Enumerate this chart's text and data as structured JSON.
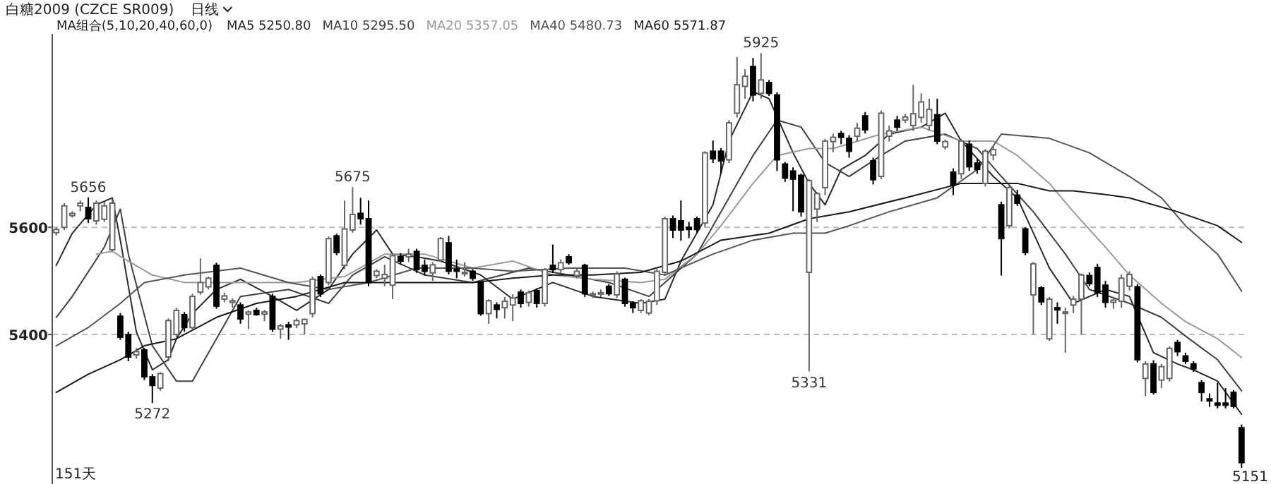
{
  "chart_data": {
    "type": "candlestick",
    "title": "白糖2009 (CZCE SR009)",
    "subtitle": "日线",
    "legend_title": "MA组合(5,10,20,40,60,0)",
    "legend": "top left",
    "grid": "y",
    "tick_labels": "y",
    "ylim": [
      5121,
      5961
    ],
    "yticks": [
      5400,
      5600
    ],
    "categories": [
      null,
      null,
      null,
      null,
      null,
      null,
      null,
      null,
      null,
      null,
      null,
      null,
      null,
      null,
      null,
      null,
      null,
      null,
      null,
      null,
      null,
      null,
      null,
      null,
      null,
      null,
      null,
      null,
      null,
      null,
      null,
      null,
      null,
      null,
      null,
      null,
      null,
      null,
      null,
      null,
      null,
      null,
      null,
      null,
      null,
      null,
      null,
      null,
      null,
      null,
      null,
      null,
      null,
      null,
      null,
      null,
      null,
      null,
      null,
      null,
      null,
      null,
      null,
      null,
      null,
      null,
      null,
      null,
      null,
      null,
      null,
      null,
      null,
      null,
      null,
      null,
      null,
      null,
      null,
      null,
      null,
      null,
      null,
      null,
      null,
      null,
      null,
      null,
      null,
      null,
      null,
      null,
      null,
      null,
      null,
      null,
      null,
      null,
      null,
      null,
      null,
      null,
      null,
      null,
      null,
      null,
      null,
      null,
      null,
      null,
      null,
      null,
      null,
      null,
      null,
      null,
      null,
      null,
      null,
      null,
      null,
      null,
      null,
      null,
      null,
      null,
      null,
      null,
      null,
      null,
      null,
      null,
      null,
      null,
      null,
      null,
      null,
      null,
      null,
      null,
      null,
      null,
      null,
      null,
      null,
      null,
      null,
      null,
      null
    ],
    "ohlc": [
      [
        5590,
        5600,
        5585,
        5596
      ],
      [
        5600,
        5645,
        5595,
        5640
      ],
      [
        5622,
        5630,
        5618,
        5626
      ],
      [
        5640,
        5650,
        5630,
        5645
      ],
      [
        5637,
        5656,
        5608,
        5616
      ],
      [
        5612,
        5650,
        5605,
        5645
      ],
      [
        5615,
        5648,
        5610,
        5640
      ],
      [
        5558,
        5650,
        5555,
        5645
      ],
      [
        5434,
        5440,
        5390,
        5395
      ],
      [
        5400,
        5405,
        5350,
        5358
      ],
      [
        5362,
        5375,
        5355,
        5368
      ],
      [
        5371,
        5375,
        5315,
        5321
      ],
      [
        5321,
        5326,
        5272,
        5305
      ],
      [
        5300,
        5330,
        5295,
        5327
      ],
      [
        5358,
        5430,
        5350,
        5426
      ],
      [
        5400,
        5450,
        5395,
        5445
      ],
      [
        5437,
        5442,
        5405,
        5413
      ],
      [
        5413,
        5476,
        5408,
        5471
      ],
      [
        5479,
        5542,
        5474,
        5497
      ],
      [
        5489,
        5508,
        5484,
        5505
      ],
      [
        5529,
        5534,
        5448,
        5453
      ],
      [
        5466,
        5478,
        5460,
        5472
      ],
      [
        5460,
        5468,
        5450,
        5463
      ],
      [
        5455,
        5460,
        5420,
        5429
      ],
      [
        5438,
        5445,
        5410,
        5442
      ],
      [
        5445,
        5450,
        5435,
        5437
      ],
      [
        5438,
        5446,
        5425,
        5442
      ],
      [
        5471,
        5476,
        5405,
        5410
      ],
      [
        5410,
        5420,
        5392,
        5416
      ],
      [
        5418,
        5424,
        5390,
        5414
      ],
      [
        5418,
        5430,
        5412,
        5426
      ],
      [
        5420,
        5430,
        5400,
        5428
      ],
      [
        5439,
        5508,
        5432,
        5503
      ],
      [
        5508,
        5512,
        5470,
        5476
      ],
      [
        5497,
        5583,
        5492,
        5579
      ],
      [
        5584,
        5588,
        5548,
        5553
      ],
      [
        5529,
        5650,
        5522,
        5597
      ],
      [
        5595,
        5675,
        5590,
        5624
      ],
      [
        5626,
        5655,
        5605,
        5616
      ],
      [
        5616,
        5650,
        5490,
        5497
      ],
      [
        5510,
        5522,
        5505,
        5518
      ],
      [
        5505,
        5530,
        5490,
        5512
      ],
      [
        5492,
        5552,
        5466,
        5547
      ],
      [
        5545,
        5552,
        5530,
        5537
      ],
      [
        5545,
        5560,
        5535,
        5550
      ],
      [
        5555,
        5560,
        5515,
        5521
      ],
      [
        5529,
        5540,
        5510,
        5518
      ],
      [
        5515,
        5535,
        5500,
        5530
      ],
      [
        5539,
        5582,
        5535,
        5579
      ],
      [
        5571,
        5584,
        5512,
        5518
      ],
      [
        5522,
        5540,
        5505,
        5518
      ],
      [
        5514,
        5535,
        5508,
        5516
      ],
      [
        5518,
        5522,
        5500,
        5505
      ],
      [
        5497,
        5500,
        5435,
        5439
      ],
      [
        5439,
        5466,
        5420,
        5463
      ],
      [
        5455,
        5460,
        5430,
        5447
      ],
      [
        5450,
        5470,
        5430,
        5462
      ],
      [
        5455,
        5475,
        5425,
        5468
      ],
      [
        5479,
        5484,
        5450,
        5458
      ],
      [
        5460,
        5482,
        5452,
        5478
      ],
      [
        5482,
        5486,
        5450,
        5458
      ],
      [
        5458,
        5524,
        5452,
        5521
      ],
      [
        5529,
        5568,
        5515,
        5521
      ],
      [
        5521,
        5540,
        5515,
        5534
      ],
      [
        5545,
        5550,
        5530,
        5534
      ],
      [
        5510,
        5525,
        5505,
        5518
      ],
      [
        5529,
        5532,
        5470,
        5476
      ],
      [
        5474,
        5480,
        5468,
        5476
      ],
      [
        5476,
        5484,
        5470,
        5478
      ],
      [
        5490,
        5494,
        5472,
        5476
      ],
      [
        5474,
        5518,
        5468,
        5513
      ],
      [
        5503,
        5506,
        5452,
        5458
      ],
      [
        5458,
        5462,
        5440,
        5450
      ],
      [
        5445,
        5466,
        5440,
        5463
      ],
      [
        5440,
        5466,
        5436,
        5462
      ],
      [
        5463,
        5522,
        5455,
        5518
      ],
      [
        5516,
        5620,
        5510,
        5616
      ],
      [
        5616,
        5622,
        5580,
        5595
      ],
      [
        5612,
        5650,
        5575,
        5595
      ],
      [
        5600,
        5610,
        5580,
        5596
      ],
      [
        5616,
        5620,
        5590,
        5596
      ],
      [
        5608,
        5742,
        5600,
        5739
      ],
      [
        5742,
        5762,
        5720,
        5728
      ],
      [
        5742,
        5748,
        5700,
        5724
      ],
      [
        5726,
        5800,
        5720,
        5795
      ],
      [
        5813,
        5918,
        5805,
        5866
      ],
      [
        5863,
        5895,
        5840,
        5882
      ],
      [
        5900,
        5916,
        5835,
        5847
      ],
      [
        5850,
        5925,
        5840,
        5875
      ],
      [
        5870,
        5875,
        5845,
        5850
      ],
      [
        5847,
        5852,
        5705,
        5726
      ],
      [
        5718,
        5722,
        5685,
        5692
      ],
      [
        5705,
        5712,
        5630,
        5690
      ],
      [
        5697,
        5700,
        5620,
        5629
      ],
      [
        5516,
        5690,
        5331,
        5687
      ],
      [
        5634,
        5666,
        5610,
        5663
      ],
      [
        5674,
        5765,
        5660,
        5761
      ],
      [
        5760,
        5775,
        5740,
        5768
      ],
      [
        5775,
        5780,
        5755,
        5768
      ],
      [
        5766,
        5772,
        5730,
        5742
      ],
      [
        5770,
        5795,
        5760,
        5785
      ],
      [
        5808,
        5815,
        5775,
        5782
      ],
      [
        5724,
        5730,
        5680,
        5689
      ],
      [
        5695,
        5818,
        5690,
        5813
      ],
      [
        5770,
        5790,
        5760,
        5780
      ],
      [
        5800,
        5808,
        5780,
        5787
      ],
      [
        5800,
        5812,
        5795,
        5806
      ],
      [
        5790,
        5866,
        5780,
        5812
      ],
      [
        5805,
        5850,
        5795,
        5834
      ],
      [
        5790,
        5840,
        5780,
        5820
      ],
      [
        5810,
        5840,
        5755,
        5761
      ],
      [
        5750,
        5764,
        5745,
        5760
      ],
      [
        5703,
        5710,
        5660,
        5679
      ],
      [
        5700,
        5765,
        5690,
        5761
      ],
      [
        5755,
        5762,
        5705,
        5713
      ],
      [
        5720,
        5728,
        5700,
        5708
      ],
      [
        5682,
        5746,
        5676,
        5742
      ],
      [
        5735,
        5752,
        5725,
        5745
      ],
      [
        5642,
        5648,
        5510,
        5579
      ],
      [
        5603,
        5680,
        5598,
        5674
      ],
      [
        5660,
        5670,
        5640,
        5645
      ],
      [
        5597,
        5600,
        5548,
        5553
      ],
      [
        5474,
        5535,
        5400,
        5532
      ],
      [
        5487,
        5490,
        5455,
        5461
      ],
      [
        5392,
        5470,
        5388,
        5466
      ],
      [
        5450,
        5460,
        5420,
        5446
      ],
      [
        5440,
        5450,
        5366,
        5442
      ],
      [
        5455,
        5472,
        5440,
        5466
      ],
      [
        5466,
        5514,
        5400,
        5511
      ],
      [
        5510,
        5516,
        5490,
        5495
      ],
      [
        5525,
        5532,
        5470,
        5478
      ],
      [
        5492,
        5500,
        5450,
        5460
      ],
      [
        5460,
        5470,
        5448,
        5464
      ],
      [
        5462,
        5512,
        5450,
        5505
      ],
      [
        5490,
        5518,
        5482,
        5512
      ],
      [
        5489,
        5494,
        5348,
        5353
      ],
      [
        5318,
        5350,
        5285,
        5345
      ],
      [
        5345,
        5352,
        5288,
        5292
      ],
      [
        5315,
        5345,
        5300,
        5340
      ],
      [
        5318,
        5378,
        5312,
        5374
      ],
      [
        5385,
        5390,
        5360,
        5368
      ],
      [
        5360,
        5366,
        5345,
        5350
      ],
      [
        5345,
        5350,
        5330,
        5336
      ],
      [
        5310,
        5315,
        5275,
        5292
      ],
      [
        5280,
        5290,
        5265,
        5276
      ],
      [
        5272,
        5310,
        5262,
        5268
      ],
      [
        5272,
        5300,
        5262,
        5268
      ],
      [
        5292,
        5296,
        5262,
        5266
      ],
      [
        5226,
        5232,
        5151,
        5161
      ]
    ],
    "series": [
      {
        "type": "line",
        "name": "MA5 5250.80",
        "color": "#2b2b2b",
        "values": [
          5529,
          null,
          5589,
          null,
          null,
          5642,
          null,
          5655,
          5576,
          null,
          5405,
          null,
          5334,
          null,
          5353,
          5392,
          null,
          5439,
          null,
          null,
          5484,
          null,
          null,
          5503,
          null,
          null,
          null,
          5471,
          null,
          null,
          5445,
          null,
          null,
          null,
          5484,
          null,
          null,
          5550,
          null,
          null,
          5595,
          null,
          5550,
          null,
          null,
          5545,
          null,
          null,
          5537,
          null,
          null,
          null,
          null,
          5511,
          null,
          null,
          null,
          5466,
          null,
          null,
          null,
          null,
          5497,
          null,
          null,
          null,
          null,
          5471,
          null,
          null,
          null,
          null,
          null,
          5458,
          null,
          null,
          5466,
          null,
          5537,
          null,
          null,
          null,
          5642,
          null,
          5761,
          null,
          null,
          5853,
          null,
          5840,
          null,
          null,
          5739,
          null,
          5682,
          null,
          5642,
          null,
          5708,
          null,
          null,
          5734,
          null,
          null,
          5774,
          null,
          null,
          null,
          5787,
          null,
          null,
          5813,
          null,
          5761,
          null,
          null,
          null,
          5695,
          null,
          null,
          5655,
          null,
          null,
          null,
          5524,
          null,
          null,
          5458,
          null,
          null,
          null,
          5484,
          null,
          null,
          5471,
          null,
          null,
          5366,
          null,
          null,
          5345,
          null,
          5334,
          null,
          null,
          5313,
          null,
          null,
          5251
        ]
      },
      {
        "type": "line",
        "name": "MA10 5295.50",
        "color": "#404040",
        "values": [
          5432,
          null,
          5471,
          null,
          null,
          null,
          5563,
          null,
          5634,
          5550,
          null,
          null,
          5379,
          null,
          null,
          5313,
          null,
          5313,
          null,
          null,
          5392,
          null,
          null,
          5471,
          null,
          null,
          null,
          null,
          null,
          5484,
          null,
          null,
          null,
          null,
          5458,
          null,
          null,
          5511,
          null,
          null,
          null,
          5545,
          null,
          null,
          null,
          null,
          5511,
          null,
          null,
          null,
          null,
          null,
          5497,
          null,
          null,
          null,
          null,
          null,
          null,
          5524,
          null,
          null,
          null,
          null,
          5511,
          null,
          null,
          null,
          null,
          5497,
          null,
          null,
          null,
          null,
          5471,
          null,
          5497,
          null,
          null,
          null,
          5550,
          null,
          null,
          5629,
          null,
          null,
          null,
          5734,
          null,
          null,
          5800,
          null,
          null,
          5787,
          null,
          null,
          5721,
          null,
          null,
          5695,
          null,
          null,
          null,
          5734,
          null,
          null,
          5761,
          null,
          null,
          null,
          null,
          5774,
          null,
          null,
          null,
          5747,
          null,
          null,
          5695,
          null,
          null,
          null,
          5629,
          null,
          null,
          null,
          5550,
          null,
          null,
          5484,
          null,
          null,
          null,
          null,
          5458,
          null,
          null,
          null,
          5432,
          null,
          null,
          5397,
          null,
          null,
          null,
          5353,
          null,
          null,
          5295
        ]
      },
      {
        "type": "line",
        "name": "MA20 5357.05",
        "color": "#9a9a9a",
        "values": [
          null,
          null,
          null,
          null,
          null,
          5550,
          null,
          5555,
          null,
          5537,
          null,
          null,
          5511,
          null,
          null,
          null,
          5497,
          null,
          null,
          null,
          5497,
          null,
          null,
          null,
          null,
          5497,
          null,
          null,
          null,
          null,
          5497,
          null,
          null,
          null,
          null,
          null,
          5508,
          null,
          null,
          null,
          null,
          5550,
          null,
          null,
          null,
          null,
          5550,
          null,
          null,
          null,
          null,
          null,
          5524,
          null,
          null,
          null,
          null,
          5537,
          null,
          null,
          null,
          null,
          5511,
          null,
          null,
          null,
          null,
          5503,
          null,
          null,
          null,
          null,
          null,
          5497,
          null,
          null,
          5503,
          null,
          null,
          null,
          5550,
          null,
          null,
          5603,
          null,
          null,
          null,
          5682,
          null,
          null,
          5734,
          null,
          null,
          null,
          5747,
          null,
          null,
          5747,
          null,
          null,
          null,
          null,
          null,
          5774,
          null,
          null,
          null,
          null,
          5787,
          null,
          null,
          null,
          null,
          5761,
          null,
          null,
          null,
          5761,
          null,
          null,
          5734,
          null,
          null,
          null,
          5682,
          null,
          null,
          5629,
          null,
          null,
          null,
          5563,
          null,
          null,
          5511,
          null,
          null,
          null,
          5458,
          null,
          null,
          5424,
          null,
          null,
          null,
          5392,
          null,
          null,
          5357
        ]
      },
      {
        "type": "line",
        "name": "MA40 5480.73",
        "color": "#555555",
        "values": [
          5379,
          null,
          null,
          null,
          5413,
          null,
          null,
          null,
          5458,
          null,
          null,
          5497,
          null,
          null,
          null,
          null,
          5511,
          null,
          null,
          null,
          null,
          null,
          null,
          5524,
          null,
          null,
          null,
          null,
          null,
          5497,
          null,
          null,
          null,
          null,
          5484,
          null,
          null,
          null,
          null,
          5497,
          null,
          null,
          null,
          null,
          null,
          5524,
          null,
          null,
          null,
          null,
          null,
          null,
          5524,
          null,
          null,
          null,
          null,
          5518,
          null,
          null,
          null,
          null,
          null,
          null,
          5524,
          null,
          null,
          null,
          null,
          null,
          null,
          5524,
          null,
          null,
          null,
          null,
          5511,
          null,
          null,
          null,
          null,
          null,
          5550,
          null,
          null,
          null,
          null,
          5576,
          null,
          null,
          null,
          null,
          5589,
          null,
          null,
          null,
          5589,
          null,
          null,
          5603,
          null,
          null,
          null,
          null,
          5629,
          null,
          null,
          null,
          null,
          null,
          5655,
          null,
          null,
          null,
          null,
          5708,
          null,
          null,
          5774,
          null,
          null,
          null,
          null,
          null,
          5766,
          null,
          null,
          null,
          null,
          5739,
          null,
          null,
          null,
          null,
          5695,
          null,
          null,
          null,
          5655,
          null,
          null,
          5603,
          null,
          null,
          null,
          5550,
          null,
          null,
          5481
        ]
      },
      {
        "type": "line",
        "name": "MA60 5571.87",
        "color": "#1a1a1a",
        "values": [
          5292,
          null,
          null,
          null,
          5326,
          null,
          null,
          null,
          5353,
          null,
          null,
          5379,
          null,
          null,
          null,
          5392,
          null,
          null,
          null,
          null,
          5432,
          null,
          null,
          null,
          null,
          5458,
          null,
          null,
          null,
          null,
          5471,
          null,
          null,
          null,
          null,
          null,
          5497,
          null,
          null,
          null,
          null,
          5497,
          null,
          null,
          null,
          null,
          5497,
          null,
          null,
          null,
          null,
          null,
          5497,
          null,
          null,
          null,
          null,
          5505,
          null,
          null,
          null,
          null,
          5511,
          null,
          null,
          null,
          null,
          5511,
          null,
          null,
          null,
          null,
          null,
          5516,
          null,
          null,
          null,
          null,
          5537,
          null,
          null,
          null,
          null,
          5576,
          null,
          null,
          null,
          null,
          null,
          5589,
          null,
          null,
          null,
          null,
          5616,
          null,
          null,
          null,
          null,
          5629,
          null,
          null,
          null,
          null,
          null,
          null,
          5655,
          null,
          null,
          null,
          null,
          null,
          null,
          5682,
          null,
          null,
          null,
          null,
          null,
          null,
          5682,
          null,
          null,
          null,
          5668,
          null,
          null,
          5668,
          null,
          null,
          null,
          5661,
          null,
          null,
          5655,
          null,
          null,
          null,
          null,
          null,
          5629,
          null,
          null,
          null,
          null,
          5603,
          null,
          null,
          5572
        ]
      }
    ],
    "annotations": [
      {
        "text": "5656",
        "y": 5656
      },
      {
        "text": "5675",
        "y": 5675
      },
      {
        "text": "5925",
        "y": 5925
      },
      {
        "text": "5272",
        "y": 5272
      },
      {
        "text": "5331",
        "y": 5331
      },
      "151天",
      "5151"
    ]
  }
}
